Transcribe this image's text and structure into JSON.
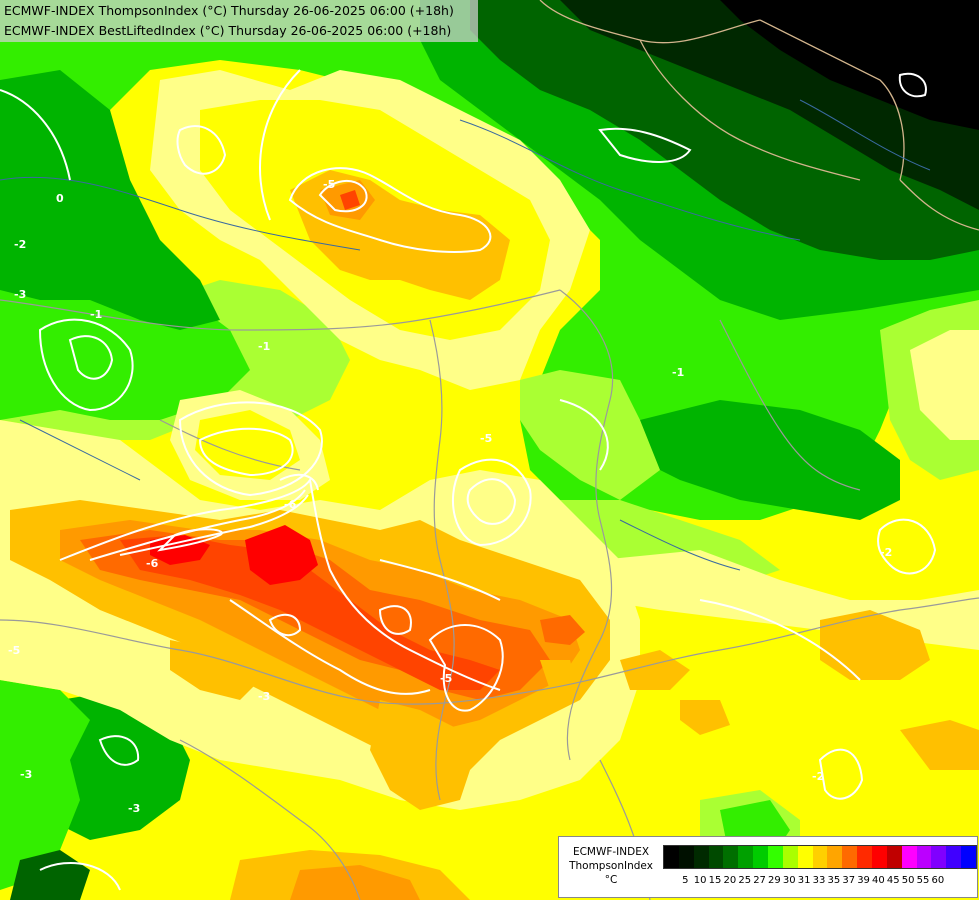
{
  "map": {
    "titles": [
      "ECMWF-INDEX ThompsonIndex (°C) Thursday 26-06-2025 06:00 (+18h)",
      "ECMWF-INDEX BestLiftedIndex (°C) Thursday 26-06-2025 06:00 (+18h)"
    ],
    "contour_labels": [
      "-5",
      "-6",
      "-6",
      "-5",
      "-5",
      "-2",
      "-2",
      "-3",
      "-3",
      "-3",
      "-3",
      "-1",
      "0",
      "-2",
      "-1",
      "-1",
      "-5"
    ]
  },
  "legend": {
    "lines": [
      "ECMWF-INDEX",
      "ThompsonIndex",
      "°C"
    ],
    "tick_labels": [
      "5",
      "10",
      "15",
      "20",
      "25",
      "27",
      "29",
      "30",
      "31",
      "33",
      "35",
      "37",
      "39",
      "40",
      "45",
      "50",
      "55",
      "60"
    ],
    "swatch_colors": [
      "#000000",
      "#001000",
      "#002a00",
      "#004a00",
      "#006f00",
      "#00a000",
      "#00cc00",
      "#33ff00",
      "#aaff00",
      "#ffff00",
      "#ffd000",
      "#ffa500",
      "#ff6a00",
      "#ff2a00",
      "#ff0000",
      "#c00000",
      "#ff00ff",
      "#bb00ff",
      "#8000ff",
      "#4000ff",
      "#0000ff"
    ]
  },
  "colors": {
    "very_dark_green": "#002800",
    "dark_green": "#006400",
    "green": "#00b400",
    "bright_green": "#33ee00",
    "yellow_green": "#aaff33",
    "light_yellow": "#ffff88",
    "yellow": "#ffff00",
    "gold": "#ffc000",
    "orange": "#ff9a00",
    "dark_orange": "#ff6a00",
    "red_orange": "#ff4400",
    "red": "#ff0000"
  }
}
